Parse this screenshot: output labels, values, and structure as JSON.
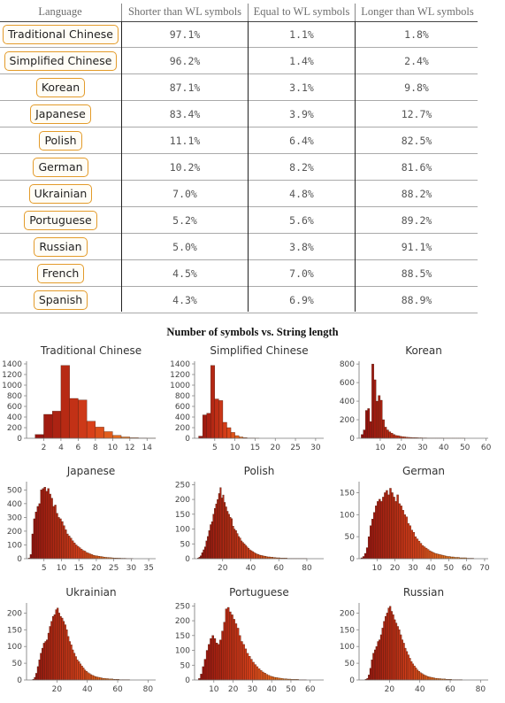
{
  "table": {
    "headers": [
      "Language",
      "Shorter than WL symbols",
      "Equal to WL symbols",
      "Longer than WL symbols"
    ],
    "rows": [
      {
        "language": "Traditional Chinese",
        "shorter": "97.1%",
        "equal": "1.1%",
        "longer": "1.8%"
      },
      {
        "language": "Simplified Chinese",
        "shorter": "96.2%",
        "equal": "1.4%",
        "longer": "2.4%"
      },
      {
        "language": "Korean",
        "shorter": "87.1%",
        "equal": "3.1%",
        "longer": "9.8%"
      },
      {
        "language": "Japanese",
        "shorter": "83.4%",
        "equal": "3.9%",
        "longer": "12.7%"
      },
      {
        "language": "Polish",
        "shorter": "11.1%",
        "equal": "6.4%",
        "longer": "82.5%"
      },
      {
        "language": "German",
        "shorter": "10.2%",
        "equal": "8.2%",
        "longer": "81.6%"
      },
      {
        "language": "Ukrainian",
        "shorter": "7.0%",
        "equal": "4.8%",
        "longer": "88.2%"
      },
      {
        "language": "Portuguese",
        "shorter": "5.2%",
        "equal": "5.6%",
        "longer": "89.2%"
      },
      {
        "language": "Russian",
        "shorter": "5.0%",
        "equal": "3.8%",
        "longer": "91.1%"
      },
      {
        "language": "French",
        "shorter": "4.5%",
        "equal": "7.0%",
        "longer": "88.5%"
      },
      {
        "language": "Spanish",
        "shorter": "4.3%",
        "equal": "6.9%",
        "longer": "88.9%"
      }
    ]
  },
  "grid_title": "Number of symbols vs. String length",
  "colors": {
    "low": "#8b0d0d",
    "mid": "#d8401a",
    "high": "#f5a623",
    "button_border": "#e39b2a"
  },
  "chart_data": [
    {
      "type": "bar",
      "title": "Traditional Chinese",
      "xlim": [
        0,
        15
      ],
      "ylim": [
        0,
        1450
      ],
      "xticks": [
        2,
        4,
        6,
        8,
        10,
        12,
        14
      ],
      "yticks": [
        0,
        200,
        400,
        600,
        800,
        1000,
        1200,
        1400
      ],
      "bin_start": 0,
      "bin_width": 1,
      "values": [
        0,
        70,
        450,
        510,
        1370,
        750,
        720,
        320,
        210,
        125,
        55,
        25,
        10,
        5,
        2
      ]
    },
    {
      "type": "bar",
      "title": "Simplified Chinese",
      "xlim": [
        0,
        32
      ],
      "ylim": [
        0,
        1450
      ],
      "xticks": [
        5,
        10,
        15,
        20,
        25,
        30
      ],
      "yticks": [
        0,
        200,
        400,
        600,
        800,
        1000,
        1200,
        1400
      ],
      "bin_start": 0,
      "bin_width": 1,
      "values": [
        0,
        40,
        440,
        470,
        1370,
        740,
        710,
        300,
        200,
        110,
        50,
        25,
        12,
        5,
        3,
        2
      ]
    },
    {
      "type": "bar",
      "title": "Korean",
      "xlim": [
        0,
        61
      ],
      "ylim": [
        0,
        830
      ],
      "xticks": [
        10,
        20,
        30,
        40,
        50,
        60
      ],
      "yticks": [
        0,
        200,
        400,
        600,
        800
      ],
      "bin_start": 0,
      "bin_width": 1,
      "values": [
        0,
        40,
        90,
        300,
        320,
        180,
        800,
        630,
        400,
        460,
        410,
        200,
        120,
        90,
        70,
        55,
        40,
        30,
        28,
        22,
        18,
        15,
        12,
        10,
        9,
        8,
        7,
        6,
        5,
        5,
        4,
        4,
        3,
        3,
        3,
        2,
        2,
        2,
        2,
        2,
        1,
        1,
        1,
        1,
        1,
        1,
        1,
        1,
        1,
        1
      ]
    },
    {
      "type": "bar",
      "title": "Japanese",
      "xlim": [
        0,
        37
      ],
      "ylim": [
        0,
        560
      ],
      "xticks": [
        5,
        10,
        15,
        20,
        25,
        30,
        35
      ],
      "yticks": [
        0,
        100,
        200,
        300,
        400,
        500
      ],
      "bin_start": 0,
      "bin_width": 0.5,
      "values": [
        0,
        5,
        30,
        180,
        290,
        340,
        380,
        400,
        500,
        510,
        520,
        490,
        510,
        470,
        440,
        380,
        390,
        330,
        300,
        290,
        270,
        240,
        210,
        180,
        165,
        150,
        130,
        115,
        100,
        90,
        80,
        70,
        60,
        55,
        45,
        40,
        35,
        30,
        25,
        22,
        20,
        18,
        16,
        14,
        12,
        10,
        9,
        8,
        7,
        6,
        5,
        5,
        4,
        4,
        3,
        3,
        3,
        2,
        2,
        2,
        2
      ]
    },
    {
      "type": "bar",
      "title": "Polish",
      "xlim": [
        0,
        92
      ],
      "ylim": [
        0,
        260
      ],
      "xticks": [
        20,
        40,
        60,
        80
      ],
      "yticks": [
        0,
        50,
        100,
        150,
        200,
        250
      ],
      "bin_start": 0,
      "bin_width": 1,
      "values": [
        0,
        0,
        2,
        5,
        10,
        20,
        30,
        40,
        60,
        75,
        95,
        115,
        125,
        150,
        170,
        185,
        200,
        220,
        240,
        205,
        215,
        190,
        175,
        160,
        150,
        140,
        135,
        110,
        100,
        95,
        85,
        75,
        70,
        60,
        55,
        50,
        45,
        40,
        35,
        30,
        27,
        24,
        21,
        18,
        16,
        14,
        12,
        11,
        10,
        9,
        8,
        7,
        6,
        6,
        5,
        5,
        4,
        4,
        3,
        3,
        3,
        2,
        2,
        2,
        2,
        2,
        1,
        1,
        1,
        1,
        1,
        1,
        1,
        1,
        1,
        1,
        1,
        1,
        1,
        1
      ]
    },
    {
      "type": "bar",
      "title": "German",
      "xlim": [
        0,
        72
      ],
      "ylim": [
        0,
        175
      ],
      "xticks": [
        10,
        20,
        30,
        40,
        50,
        60,
        70
      ],
      "yticks": [
        0,
        50,
        100,
        150
      ],
      "bin_start": 0,
      "bin_width": 1,
      "values": [
        0,
        2,
        5,
        12,
        25,
        50,
        75,
        90,
        105,
        120,
        130,
        135,
        130,
        140,
        150,
        155,
        145,
        160,
        150,
        140,
        130,
        145,
        125,
        120,
        110,
        100,
        95,
        80,
        75,
        65,
        60,
        50,
        45,
        40,
        35,
        30,
        27,
        24,
        21,
        18,
        16,
        14,
        12,
        11,
        10,
        9,
        8,
        7,
        6,
        5,
        5,
        4,
        4,
        3,
        3,
        3,
        2,
        2,
        2,
        2,
        1,
        1,
        1,
        1
      ]
    },
    {
      "type": "bar",
      "title": "Ukrainian",
      "xlim": [
        0,
        85
      ],
      "ylim": [
        0,
        230
      ],
      "xticks": [
        20,
        40,
        60,
        80
      ],
      "yticks": [
        0,
        50,
        100,
        150,
        200
      ],
      "bin_start": 0,
      "bin_width": 1,
      "values": [
        0,
        0,
        0,
        0,
        2,
        8,
        20,
        40,
        60,
        80,
        95,
        110,
        115,
        120,
        140,
        160,
        175,
        190,
        195,
        210,
        215,
        200,
        190,
        185,
        175,
        165,
        150,
        130,
        115,
        105,
        90,
        80,
        70,
        60,
        55,
        48,
        42,
        36,
        30,
        26,
        22,
        19,
        16,
        14,
        12,
        10,
        9,
        8,
        7,
        6,
        5,
        5,
        4,
        4,
        3,
        3,
        3,
        2,
        2,
        2,
        2,
        1,
        1,
        1,
        1,
        1,
        1,
        1
      ]
    },
    {
      "type": "bar",
      "title": "Portuguese",
      "xlim": [
        0,
        67
      ],
      "ylim": [
        0,
        260
      ],
      "xticks": [
        10,
        20,
        30,
        40,
        50,
        60
      ],
      "yticks": [
        0,
        50,
        100,
        150,
        200,
        250
      ],
      "bin_start": 0,
      "bin_width": 1,
      "values": [
        0,
        0,
        5,
        20,
        45,
        70,
        100,
        120,
        140,
        150,
        140,
        125,
        120,
        135,
        165,
        195,
        240,
        245,
        230,
        220,
        205,
        190,
        175,
        150,
        130,
        120,
        105,
        90,
        80,
        70,
        60,
        52,
        45,
        38,
        32,
        27,
        23,
        19,
        16,
        13,
        11,
        9,
        8,
        7,
        6,
        5,
        4,
        4,
        3,
        3,
        2,
        2,
        2,
        2,
        1,
        1,
        1,
        1
      ]
    },
    {
      "type": "bar",
      "title": "Russian",
      "xlim": [
        0,
        85
      ],
      "ylim": [
        0,
        230
      ],
      "xticks": [
        20,
        40,
        60,
        80
      ],
      "yticks": [
        0,
        50,
        100,
        150,
        200
      ],
      "bin_start": 0,
      "bin_width": 1,
      "values": [
        0,
        0,
        0,
        0,
        2,
        5,
        15,
        35,
        60,
        80,
        90,
        100,
        115,
        120,
        135,
        155,
        175,
        190,
        200,
        215,
        220,
        205,
        195,
        180,
        170,
        160,
        150,
        135,
        120,
        110,
        95,
        85,
        75,
        65,
        55,
        48,
        42,
        36,
        30,
        26,
        22,
        19,
        16,
        14,
        12,
        10,
        9,
        8,
        7,
        6,
        5,
        5,
        4,
        4,
        3,
        3,
        3,
        2,
        2,
        2,
        2,
        1,
        1,
        1,
        1,
        1,
        1,
        1
      ]
    }
  ]
}
